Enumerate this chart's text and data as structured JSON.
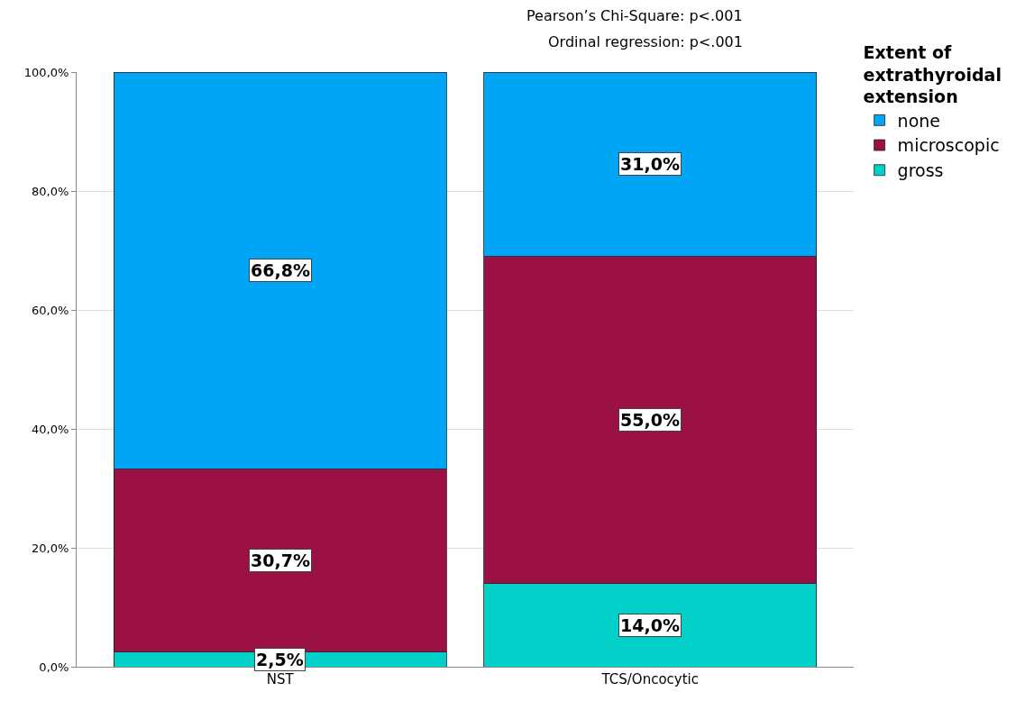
{
  "chart_data": {
    "type": "bar",
    "stacked": true,
    "categories": [
      "NST",
      "TCS/Oncocytic"
    ],
    "series": [
      {
        "name": "gross",
        "color": "#00d0c8",
        "values": [
          2.5,
          14.0
        ],
        "value_labels": [
          "2,5%",
          "14,0%"
        ]
      },
      {
        "name": "microscopic",
        "color": "#9b1045",
        "values": [
          30.7,
          55.0
        ],
        "value_labels": [
          "30,7%",
          "55,0%"
        ]
      },
      {
        "name": "none",
        "color": "#00a6f5",
        "values": [
          66.8,
          31.0
        ],
        "value_labels": [
          "66,8%",
          "31,0%"
        ]
      }
    ],
    "ylim": [
      0,
      100
    ],
    "yticks": [
      {
        "value": 0,
        "label": "0,0%"
      },
      {
        "value": 20,
        "label": "20,0%"
      },
      {
        "value": 40,
        "label": "40,0%"
      },
      {
        "value": 60,
        "label": "60,0%"
      },
      {
        "value": 80,
        "label": "80,0%"
      },
      {
        "value": 100,
        "label": "100,0%"
      }
    ],
    "grid": "y",
    "legend": "top right",
    "legend_title": "Extent of extrathyroidal extension",
    "annotations": [
      "Pearson’s Chi-Square: p<.001",
      "Ordinal regression: p<.001"
    ]
  }
}
